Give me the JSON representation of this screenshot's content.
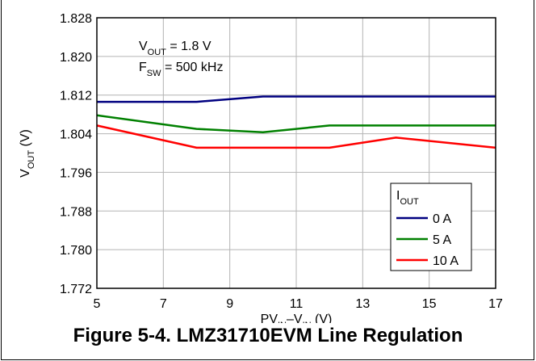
{
  "chart_data": {
    "type": "line",
    "xlabel": {
      "base": "PV",
      "sub1": "IN",
      "sep": "–V",
      "sub2": "IN",
      "unit": " (V)"
    },
    "ylabel": {
      "base": "V",
      "sub": "OUT",
      "unit": " (V)"
    },
    "xlim": [
      5,
      17
    ],
    "ylim": [
      1.772,
      1.828
    ],
    "xticks": [
      5,
      7,
      9,
      11,
      13,
      15,
      17
    ],
    "yticks": [
      "1.772",
      "1.780",
      "1.788",
      "1.796",
      "1.804",
      "1.812",
      "1.820",
      "1.828"
    ],
    "grid": true,
    "annotation": [
      {
        "base": "V",
        "sub": "OUT",
        "text": " = 1.8 V"
      },
      {
        "base": "F",
        "sub": "SW",
        "text": " = 500 kHz"
      }
    ],
    "legend": {
      "title_base": "I",
      "title_sub": "OUT",
      "position": "bottom-right"
    },
    "series": [
      {
        "name": "0 A",
        "color": "#000080",
        "x": [
          5,
          8,
          10,
          12,
          14,
          17
        ],
        "y": [
          1.8106,
          1.8106,
          1.8117,
          1.8117,
          1.8117,
          1.8117
        ]
      },
      {
        "name": "5 A",
        "color": "#008000",
        "x": [
          5,
          8,
          10,
          12,
          14,
          17
        ],
        "y": [
          1.8078,
          1.805,
          1.8043,
          1.8057,
          1.8057,
          1.8057
        ]
      },
      {
        "name": "10 A",
        "color": "#ff0000",
        "x": [
          5,
          8,
          10,
          12,
          14,
          17
        ],
        "y": [
          1.8057,
          1.8011,
          1.8011,
          1.8011,
          1.8032,
          1.8011
        ]
      }
    ]
  },
  "caption": "Figure 5-4. LMZ31710EVM Line Regulation"
}
